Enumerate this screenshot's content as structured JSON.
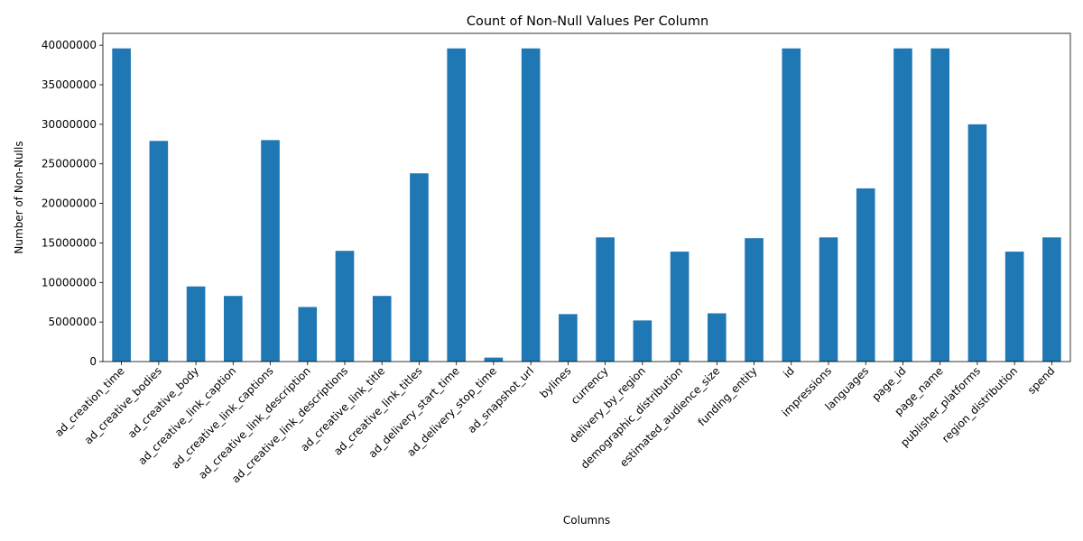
{
  "chart_data": {
    "type": "bar",
    "title": "Count of Non-Null Values Per Column",
    "xlabel": "Columns",
    "ylabel": "Number of Non-Nulls",
    "ylim": [
      0,
      41500000
    ],
    "yticks": [
      0,
      5000000,
      10000000,
      15000000,
      20000000,
      25000000,
      30000000,
      35000000,
      40000000
    ],
    "ytick_labels": [
      "0",
      "5000000",
      "10000000",
      "15000000",
      "20000000",
      "25000000",
      "30000000",
      "35000000",
      "40000000"
    ],
    "grid": false,
    "bar_color": "#1f77b4",
    "categories": [
      "ad_creation_time",
      "ad_creative_bodies",
      "ad_creative_body",
      "ad_creative_link_caption",
      "ad_creative_link_captions",
      "ad_creative_link_description",
      "ad_creative_link_descriptions",
      "ad_creative_link_title",
      "ad_creative_link_titles",
      "ad_delivery_start_time",
      "ad_delivery_stop_time",
      "ad_snapshot_url",
      "bylines",
      "currency",
      "delivery_by_region",
      "demographic_distribution",
      "estimated_audience_size",
      "funding_entity",
      "id",
      "impressions",
      "languages",
      "page_id",
      "page_name",
      "publisher_platforms",
      "region_distribution",
      "spend"
    ],
    "values": [
      39600000,
      27900000,
      9500000,
      8300000,
      28000000,
      6900000,
      14000000,
      8300000,
      23800000,
      39600000,
      500000,
      39600000,
      6000000,
      15700000,
      5200000,
      13900000,
      6100000,
      15600000,
      39600000,
      15700000,
      21900000,
      39600000,
      39600000,
      30000000,
      13900000,
      15700000
    ]
  }
}
